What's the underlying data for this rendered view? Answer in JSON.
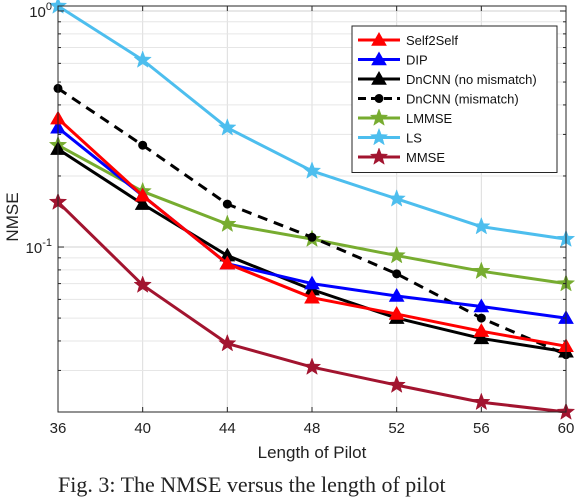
{
  "chart_data": {
    "type": "line",
    "title": "",
    "xlabel": "Length of Pilot",
    "ylabel": "NMSE",
    "x": [
      36,
      40,
      44,
      48,
      52,
      56,
      60
    ],
    "xticks": [
      "36",
      "40",
      "44",
      "48",
      "52",
      "56",
      "60"
    ],
    "yscale": "log",
    "ylim": [
      0.02,
      1.05
    ],
    "yticks": [
      {
        "value": 0.1,
        "base": "10",
        "exp": "-1"
      },
      {
        "value": 1,
        "base": "10",
        "exp": "0"
      }
    ],
    "grid": true,
    "legend_position": "top-right",
    "series": [
      {
        "name": "Self2Self",
        "color": "#ff0000",
        "marker": "triangle",
        "dash": "solid",
        "values": [
          0.35,
          0.165,
          0.085,
          0.061,
          0.052,
          0.044,
          0.038
        ]
      },
      {
        "name": "DIP",
        "color": "#0000ff",
        "marker": "triangle",
        "dash": "solid",
        "values": [
          0.32,
          0.165,
          0.085,
          0.07,
          0.062,
          0.056,
          0.05
        ]
      },
      {
        "name": "DnCNN (no mismatch)",
        "color": "#000000",
        "marker": "triangle",
        "dash": "solid",
        "values": [
          0.26,
          0.152,
          0.092,
          0.066,
          0.05,
          0.041,
          0.036
        ]
      },
      {
        "name": "DnCNN (mismatch)",
        "color": "#000000",
        "marker": "circle",
        "dash": "dashed",
        "values": [
          0.47,
          0.27,
          0.152,
          0.11,
          0.077,
          0.05,
          0.035
        ]
      },
      {
        "name": "LMMSE",
        "color": "#77ac30",
        "marker": "star",
        "dash": "solid",
        "values": [
          0.27,
          0.172,
          0.125,
          0.108,
          0.092,
          0.079,
          0.07
        ]
      },
      {
        "name": "LS",
        "color": "#4dbeee",
        "marker": "star",
        "dash": "solid",
        "values": [
          1.05,
          0.62,
          0.32,
          0.21,
          0.16,
          0.122,
          0.108
        ]
      },
      {
        "name": "MMSE",
        "color": "#a2142f",
        "marker": "star",
        "dash": "solid",
        "values": [
          0.155,
          0.069,
          0.039,
          0.031,
          0.026,
          0.022,
          0.02
        ]
      }
    ]
  },
  "caption": "Fig. 3: The NMSE versus the length of pilot"
}
